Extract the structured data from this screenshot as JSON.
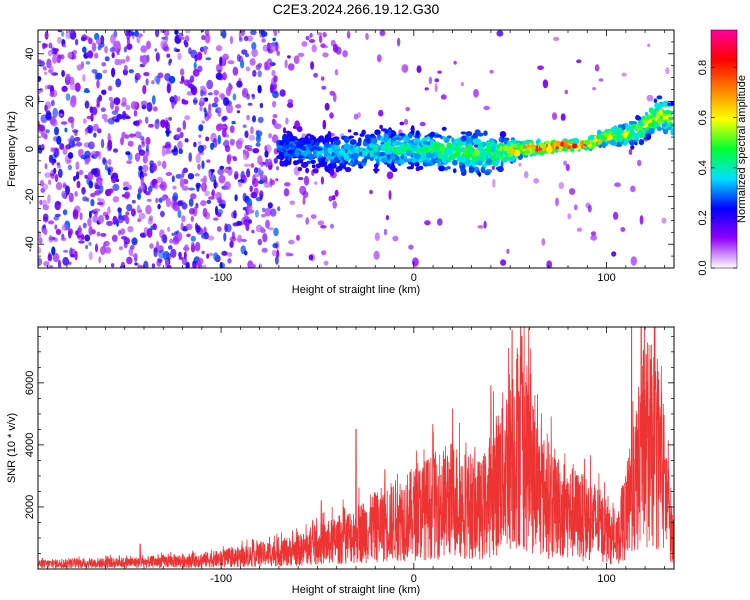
{
  "title": "C2E3.2024.266.19.12.G30",
  "chart_data": [
    {
      "type": "heatmap",
      "xlabel": "Height of straight line (km)",
      "ylabel": "Frequency (Hz)",
      "xlim": [
        -195,
        135
      ],
      "ylim": [
        -50,
        50
      ],
      "x_ticks": [
        -100,
        0,
        100
      ],
      "y_ticks": [
        -40,
        -20,
        0,
        20,
        40
      ],
      "colorbar": {
        "label": "Normalized spectral amplitude",
        "range": [
          0.0,
          0.95
        ],
        "ticks": [
          0.0,
          0.2,
          0.4,
          0.6,
          0.8
        ],
        "tick_labels": [
          "0.0",
          "0.2",
          "0.4",
          "0.6",
          "0.8"
        ],
        "colors": [
          "#ffffff",
          "#9000ff",
          "#0000ff",
          "#00e0ff",
          "#00ff30",
          "#ffff00",
          "#ff8000",
          "#ff0000",
          "#ff00a0"
        ]
      },
      "ridge": [
        {
          "x": -65,
          "y": 0,
          "amp": 0.25,
          "width": 7
        },
        {
          "x": -40,
          "y": -2,
          "amp": 0.3,
          "width": 7
        },
        {
          "x": -20,
          "y": 0,
          "amp": 0.35,
          "width": 8
        },
        {
          "x": 0,
          "y": 0,
          "amp": 0.4,
          "width": 8
        },
        {
          "x": 20,
          "y": -1,
          "amp": 0.45,
          "width": 8
        },
        {
          "x": 40,
          "y": -2,
          "amp": 0.45,
          "width": 8
        },
        {
          "x": 55,
          "y": 0,
          "amp": 0.7,
          "width": 3
        },
        {
          "x": 70,
          "y": 1,
          "amp": 0.9,
          "width": 2
        },
        {
          "x": 90,
          "y": 2,
          "amp": 0.85,
          "width": 2
        },
        {
          "x": 100,
          "y": 5,
          "amp": 0.6,
          "width": 3
        },
        {
          "x": 115,
          "y": 7,
          "amp": 0.5,
          "width": 5
        },
        {
          "x": 128,
          "y": 15,
          "amp": 0.6,
          "width": 6
        },
        {
          "x": 135,
          "y": 12,
          "amp": 0.5,
          "width": 6
        }
      ]
    },
    {
      "type": "line",
      "xlabel": "Height of straight line (km)",
      "ylabel": "SNR (10 * v/v)",
      "xlim": [
        -195,
        135
      ],
      "ylim": [
        0,
        7800
      ],
      "x_ticks": [
        -100,
        0,
        100
      ],
      "y_ticks": [
        2000,
        4000,
        6000
      ],
      "color": "#ee3333",
      "envelope": [
        {
          "x": -195,
          "y": 300
        },
        {
          "x": -140,
          "y": 400
        },
        {
          "x": -100,
          "y": 600
        },
        {
          "x": -60,
          "y": 1100
        },
        {
          "x": -40,
          "y": 1700
        },
        {
          "x": -20,
          "y": 2500
        },
        {
          "x": 0,
          "y": 3300
        },
        {
          "x": 20,
          "y": 4200
        },
        {
          "x": 35,
          "y": 3500
        },
        {
          "x": 45,
          "y": 5500
        },
        {
          "x": 55,
          "y": 7800
        },
        {
          "x": 65,
          "y": 4500
        },
        {
          "x": 80,
          "y": 3400
        },
        {
          "x": 95,
          "y": 2800
        },
        {
          "x": 105,
          "y": 1500
        },
        {
          "x": 115,
          "y": 5000
        },
        {
          "x": 120,
          "y": 7800
        },
        {
          "x": 128,
          "y": 6500
        },
        {
          "x": 135,
          "y": 1500
        }
      ],
      "spikes": [
        {
          "x": -142,
          "y": 800
        },
        {
          "x": -48,
          "y": 2200
        },
        {
          "x": -30,
          "y": 4500
        },
        {
          "x": -15,
          "y": 3200
        },
        {
          "x": 10,
          "y": 4400
        },
        {
          "x": 40,
          "y": 5900
        },
        {
          "x": 51,
          "y": 7700
        },
        {
          "x": 56,
          "y": 7500
        },
        {
          "x": 113,
          "y": 7800
        },
        {
          "x": 118,
          "y": 7800
        }
      ]
    }
  ]
}
